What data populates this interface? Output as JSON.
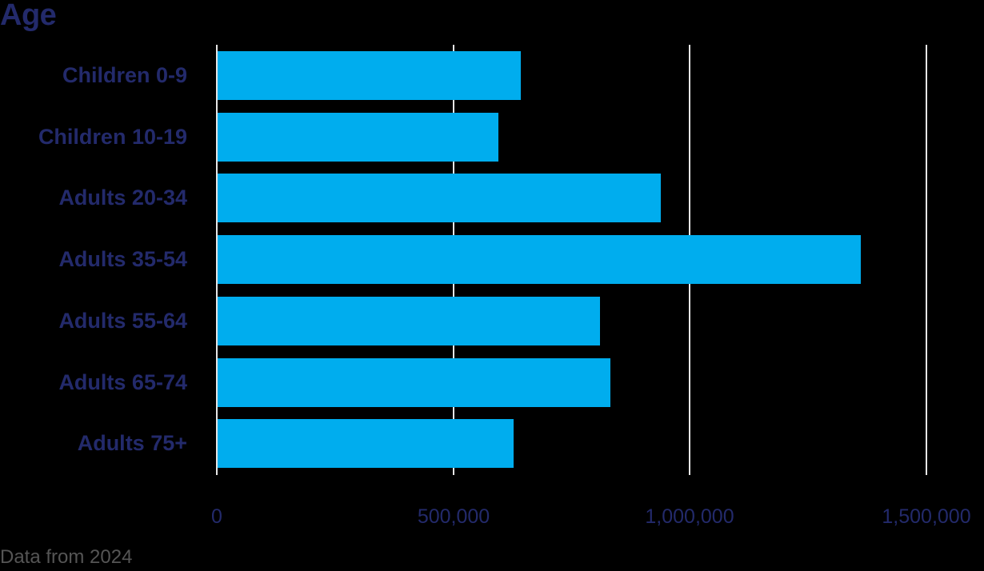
{
  "title": "Age",
  "footer": "Data from 2024",
  "colors": {
    "bar": "#00adee",
    "text": "#232a6b",
    "grid": "#e6e6e6",
    "background": "#000000"
  },
  "chart_data": {
    "type": "bar",
    "orientation": "horizontal",
    "title": "Age",
    "categories": [
      "Children 0-9",
      "Children 10-19",
      "Adults 20-34",
      "Adults 35-54",
      "Adults 55-64",
      "Adults 65-74",
      "Adults 75+"
    ],
    "values": [
      641000,
      593000,
      937000,
      1359000,
      808000,
      830000,
      626000
    ],
    "xlabel": "",
    "ylabel": "",
    "xlim": [
      0,
      1500000
    ],
    "xticks": [
      "0",
      "500,000",
      "1,000,000",
      "1,500,000"
    ],
    "grid": true,
    "note": "Data from 2024"
  }
}
